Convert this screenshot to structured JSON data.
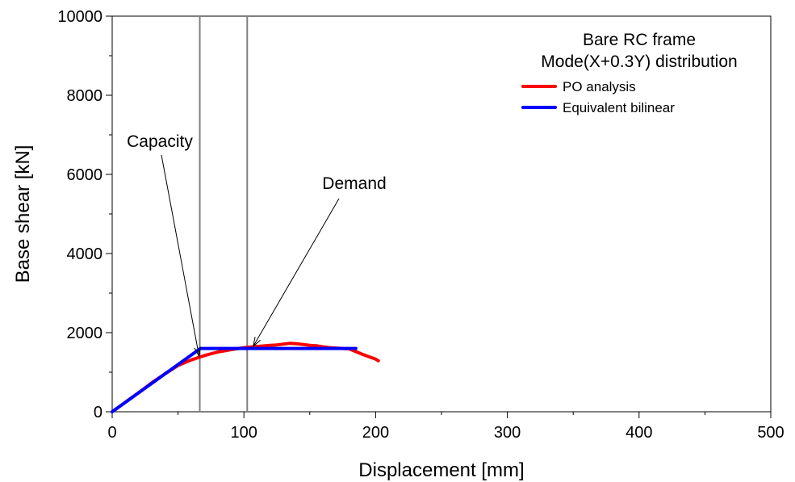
{
  "chart_data": {
    "type": "line",
    "xlabel": "Displacement  [mm]",
    "ylabel": "Base shear  [kN]",
    "xlim": [
      0,
      500
    ],
    "ylim": [
      0,
      10000
    ],
    "x_ticks": [
      0,
      100,
      200,
      300,
      400,
      500
    ],
    "y_ticks": [
      0,
      2000,
      4000,
      6000,
      8000,
      10000
    ],
    "x_tick_labels": [
      "0",
      "100",
      "200",
      "300",
      "400",
      "500"
    ],
    "y_tick_labels": [
      "0",
      "2000",
      "4000",
      "6000",
      "8000",
      "10000"
    ],
    "grid": false,
    "legend": {
      "placement": "top-right",
      "title_lines": [
        "Bare RC frame",
        "Mode(X+0.3Y) distribution"
      ]
    },
    "series": [
      {
        "name": "PO analysis",
        "color": "#ff0000",
        "points": [
          [
            0,
            0
          ],
          [
            10,
            240
          ],
          [
            20,
            480
          ],
          [
            30,
            730
          ],
          [
            40,
            960
          ],
          [
            50,
            1170
          ],
          [
            60,
            1310
          ],
          [
            70,
            1420
          ],
          [
            80,
            1510
          ],
          [
            90,
            1570
          ],
          [
            100,
            1620
          ],
          [
            110,
            1650
          ],
          [
            120,
            1680
          ],
          [
            125,
            1690
          ],
          [
            130,
            1710
          ],
          [
            135,
            1730
          ],
          [
            140,
            1720
          ],
          [
            145,
            1700
          ],
          [
            150,
            1680
          ],
          [
            155,
            1670
          ],
          [
            160,
            1640
          ],
          [
            165,
            1620
          ],
          [
            170,
            1610
          ],
          [
            175,
            1600
          ],
          [
            180,
            1590
          ],
          [
            185,
            1520
          ],
          [
            190,
            1450
          ],
          [
            195,
            1390
          ],
          [
            200,
            1330
          ],
          [
            202,
            1290
          ]
        ]
      },
      {
        "name": "Equivalent bilinear",
        "color": "#0000ff",
        "points": [
          [
            0,
            0
          ],
          [
            67,
            1600
          ],
          [
            185,
            1600
          ]
        ]
      }
    ],
    "vertical_lines": [
      {
        "name": "capacity",
        "x": 66.5
      },
      {
        "name": "demand",
        "x": 102.5
      }
    ],
    "annotations": [
      {
        "name": "capacity",
        "text": "Capacity",
        "target": [
          66,
          1400
        ]
      },
      {
        "name": "demand",
        "text": "Demand",
        "target": [
          107,
          1650
        ]
      }
    ]
  }
}
